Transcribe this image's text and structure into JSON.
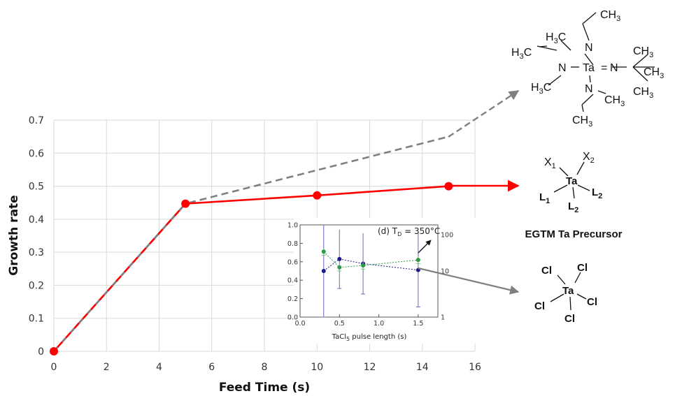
{
  "chart_data": [
    {
      "type": "line",
      "xlabel": "Feed Time (s)",
      "ylabel": "Growth rate",
      "xlim": [
        0,
        16
      ],
      "ylim": [
        0,
        0.7
      ],
      "xticks": [
        "0",
        "2",
        "4",
        "6",
        "8",
        "10",
        "12",
        "14",
        "16"
      ],
      "yticks": [
        "0",
        "0.1",
        "0.2",
        "0.3",
        "0.4",
        "0.5",
        "0.6",
        "0.7"
      ],
      "grid": true,
      "series": [
        {
          "style": "red-solid-markers",
          "color": "#ff0000",
          "x": [
            0,
            5,
            10,
            15
          ],
          "y": [
            0,
            0.447,
            0.472,
            0.5
          ]
        },
        {
          "style": "gray-dashed",
          "color": "#808080",
          "x": [
            0,
            5,
            15
          ],
          "y": [
            0,
            0.447,
            0.65
          ]
        }
      ],
      "extension_arrows": [
        {
          "series": 0,
          "to": "EGTM Ta Precursor"
        },
        {
          "series": 1,
          "to": "tertiary-butylimido tris(ethylmethylamido) Ta structure"
        }
      ]
    },
    {
      "type": "scatter",
      "title": "(d) T",
      "title_sub": "D",
      "title_rest": " = 350°C",
      "xlabel": "TaCl",
      "xlabel_sub": "5",
      "xlabel_rest": " pulse length (s)",
      "xlim": [
        0,
        1.75
      ],
      "ylim": [
        0,
        1.0
      ],
      "xticks": [
        "0.0",
        "0.5",
        "1.0",
        "1.5"
      ],
      "yticks": [
        "0.0",
        "0.2",
        "0.4",
        "0.6",
        "0.8",
        "1.0"
      ],
      "y2ticks": [
        "1",
        "10",
        "100"
      ],
      "series": [
        {
          "color": "#1a1a8c",
          "x": [
            0.3,
            0.5,
            0.8,
            1.5
          ],
          "y": [
            0.5,
            0.63,
            0.58,
            0.51
          ],
          "err": [
            0.5,
            0.32,
            0.33,
            0.4
          ]
        },
        {
          "color": "#2e9a45",
          "x": [
            0.3,
            0.5,
            0.8,
            1.5
          ],
          "y": [
            0.71,
            0.54,
            0.56,
            0.62
          ],
          "err": [
            0.04,
            0.04,
            0.04,
            0.04
          ]
        }
      ]
    }
  ],
  "molecules": {
    "egtm_label": "EGTM Ta Precursor",
    "generic": {
      "center": "Ta",
      "x1": "X",
      "x1_sub": "1",
      "x2": "X",
      "x2_sub": "2",
      "l1": "L",
      "l1_sub": "1",
      "l2": "L",
      "l2_sub": "2",
      "l2b": "L",
      "l2b_sub": "2"
    },
    "tacl5": {
      "center": "Ta",
      "ligand": "Cl"
    },
    "tbtemt": {
      "ta": "Ta",
      "n": "N",
      "eq": "=",
      "ch3": "CH",
      "sub3": "3",
      "h3c": "H",
      "h3c_sub": "3",
      "h3c_c": "C"
    }
  }
}
